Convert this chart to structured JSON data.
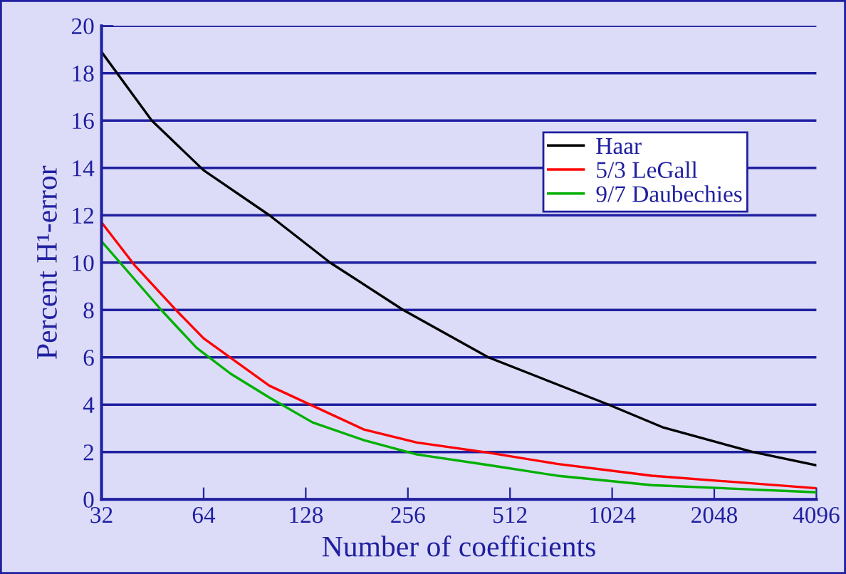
{
  "chart_data": {
    "type": "line",
    "xlabel": "Number of coefficients",
    "ylabel": "Percent H¹-error",
    "log": "x",
    "xlim": [
      32,
      4096
    ],
    "xticks": [
      32,
      64,
      128,
      256,
      512,
      1024,
      2048,
      4096
    ],
    "ylim": [
      0,
      20
    ],
    "yticks": [
      0,
      2,
      4,
      6,
      8,
      10,
      12,
      14,
      16,
      18,
      20
    ],
    "grid": "y",
    "legend": "top right",
    "marker": "none",
    "line_style": "solid",
    "series": [
      {
        "name": "Haar",
        "color": "#000000",
        "x": [
          32,
          45,
          64,
          100,
          151,
          248,
          442,
          1000,
          1440,
          2660,
          4096
        ],
        "values": [
          18.9,
          16,
          13.9,
          12,
          10,
          8,
          6,
          4,
          3.05,
          2,
          1.44
        ]
      },
      {
        "name": "5/3 LeGall",
        "color": "#ff0000",
        "x": [
          32,
          40,
          53,
          64,
          100,
          190,
          272,
          442,
          705,
          1340,
          4096
        ],
        "values": [
          11.7,
          9.9,
          8,
          6.8,
          4.8,
          2.95,
          2.4,
          1.97,
          1.5,
          1,
          0.47
        ]
      },
      {
        "name": "9/7 Daubechies",
        "color": "#00b000",
        "x": [
          32,
          48,
          61,
          77,
          100,
          134,
          190,
          272,
          442,
          705,
          1340,
          4096
        ],
        "values": [
          10.9,
          8,
          6.4,
          5.3,
          4.3,
          3.25,
          2.5,
          1.9,
          1.45,
          1,
          0.6,
          0.3
        ]
      }
    ]
  }
}
